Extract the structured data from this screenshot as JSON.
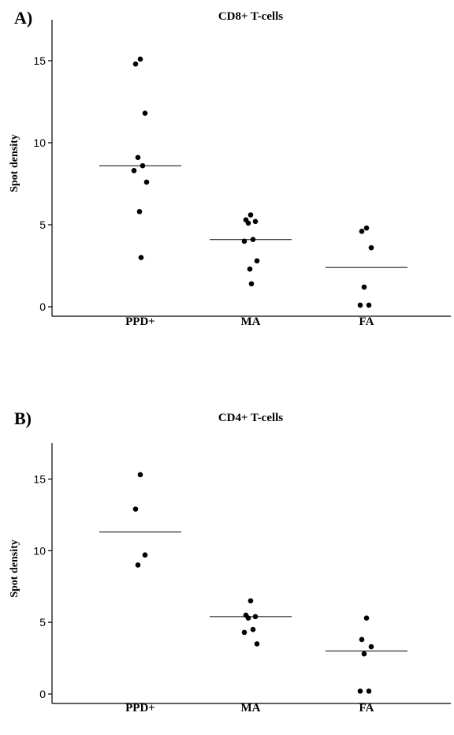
{
  "chart_data": [
    {
      "type": "scatter",
      "panel_label": "A)",
      "title": "CD8+ T-cells",
      "xlabel": "",
      "ylabel": "Spot density",
      "ylim": [
        0,
        17.5
      ],
      "yticks": [
        "0",
        "5",
        "10",
        "15"
      ],
      "categories": [
        "PPD+",
        "MA",
        "FA"
      ],
      "points": [
        [
          15.1,
          14.8,
          11.8,
          9.1,
          8.6,
          8.3,
          7.6,
          5.8,
          3.0
        ],
        [
          5.6,
          5.3,
          5.2,
          5.1,
          4.1,
          4.0,
          2.8,
          2.3,
          1.4
        ],
        [
          4.8,
          4.6,
          3.6,
          1.2,
          0.1,
          0.1
        ]
      ],
      "medians": [
        8.6,
        4.1,
        2.4
      ],
      "grid": false,
      "color": "#000000"
    },
    {
      "type": "scatter",
      "panel_label": "B)",
      "title": "CD4+ T-cells",
      "xlabel": "",
      "ylabel": "Spot density",
      "ylim": [
        0,
        17.5
      ],
      "yticks": [
        "0",
        "5",
        "10",
        "15"
      ],
      "categories": [
        "PPD+",
        "MA",
        "FA"
      ],
      "points": [
        [
          15.3,
          12.9,
          9.7,
          9.0
        ],
        [
          6.5,
          5.5,
          5.4,
          5.3,
          4.5,
          4.3,
          3.5
        ],
        [
          5.3,
          3.8,
          3.3,
          2.8,
          0.2,
          0.2
        ]
      ],
      "medians": [
        11.3,
        5.4,
        3.0
      ],
      "grid": false,
      "color": "#000000"
    }
  ]
}
